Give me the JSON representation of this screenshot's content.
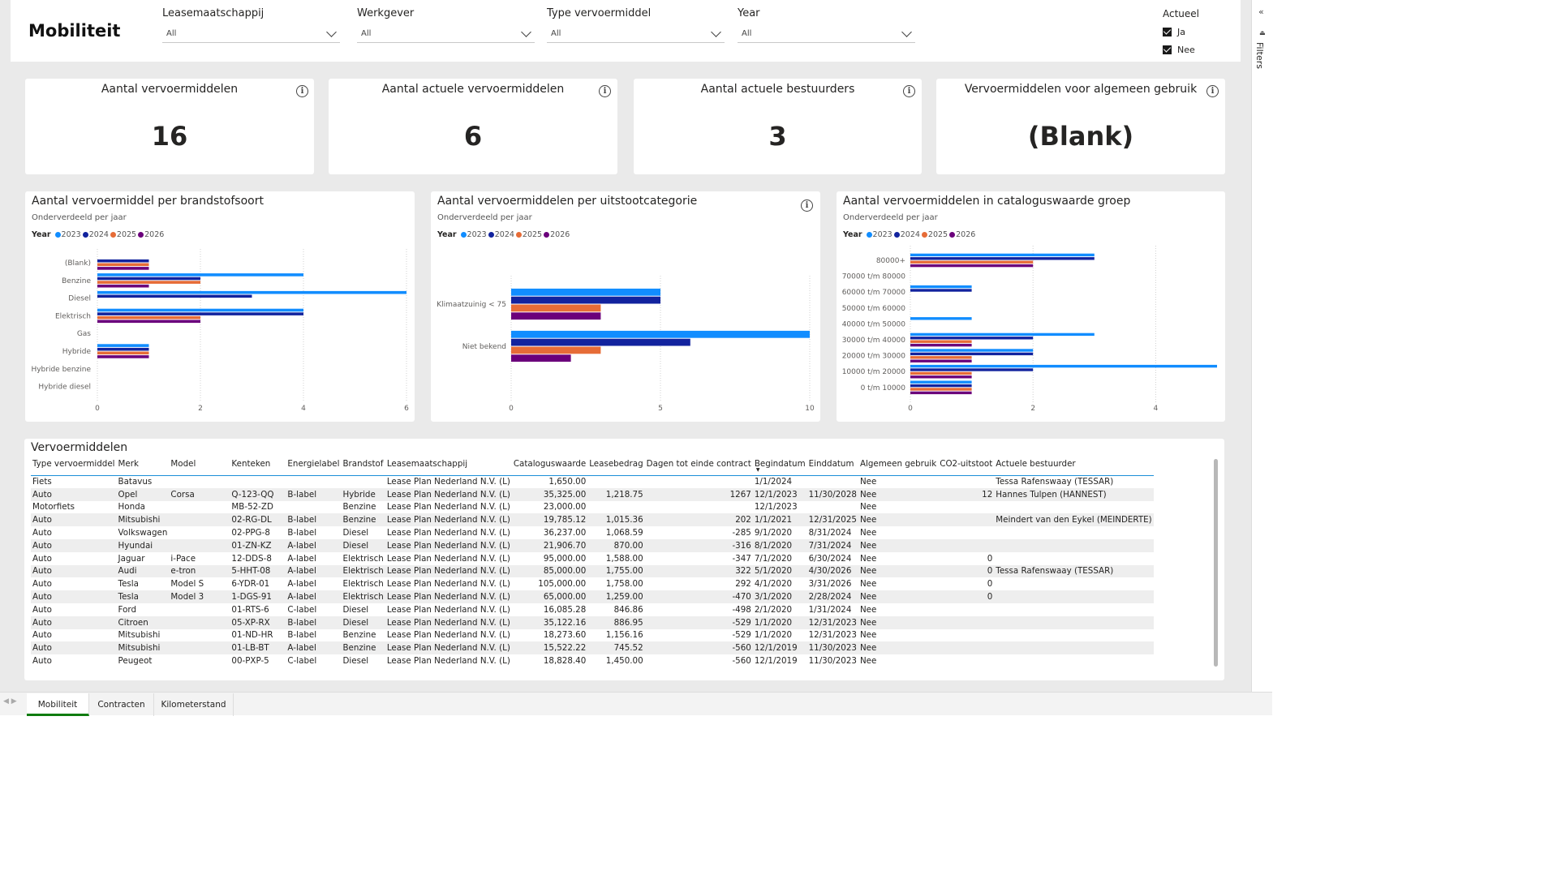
{
  "report": {
    "title": "Mobiliteit"
  },
  "slicers": [
    {
      "label": "Leasemaatschappij",
      "value": "All"
    },
    {
      "label": "Werkgever",
      "value": "All"
    },
    {
      "label": "Type vervoermiddel",
      "value": "All"
    },
    {
      "label": "Year",
      "value": "All"
    }
  ],
  "actueel": {
    "label": "Actueel",
    "options": [
      {
        "label": "Ja",
        "checked": true
      },
      {
        "label": "Nee",
        "checked": true
      }
    ]
  },
  "kpis": [
    {
      "title": "Aantal vervoermiddelen",
      "value": "16"
    },
    {
      "title": "Aantal actuele vervoermiddelen",
      "value": "6"
    },
    {
      "title": "Aantal actuele bestuurders",
      "value": "3"
    },
    {
      "title": "Vervoermiddelen voor algemeen gebruik",
      "value": "(Blank)"
    }
  ],
  "legend": {
    "title": "Year",
    "items": [
      {
        "label": "2023",
        "color": "#118DFF"
      },
      {
        "label": "2024",
        "color": "#12239E"
      },
      {
        "label": "2025",
        "color": "#E66C37"
      },
      {
        "label": "2026",
        "color": "#6B007B"
      }
    ]
  },
  "chart_data": [
    {
      "type": "bar",
      "orientation": "horizontal",
      "title": "Aantal vervoermiddel per brandstofsoort",
      "subtitle": "Onderverdeeld per jaar",
      "categories": [
        "(Blank)",
        "Benzine",
        "Diesel",
        "Elektrisch",
        "Gas",
        "Hybride",
        "Hybride benzine",
        "Hybride diesel"
      ],
      "series": [
        {
          "name": "2023",
          "values": [
            0,
            4,
            6,
            4,
            0,
            1,
            0,
            0
          ]
        },
        {
          "name": "2024",
          "values": [
            1,
            2,
            3,
            4,
            0,
            1,
            0,
            0
          ]
        },
        {
          "name": "2025",
          "values": [
            1,
            2,
            0,
            2,
            0,
            1,
            0,
            0
          ]
        },
        {
          "name": "2026",
          "values": [
            1,
            1,
            0,
            2,
            0,
            1,
            0,
            0
          ]
        }
      ],
      "xlim": [
        0,
        6
      ],
      "xticks": [
        "0",
        "2",
        "4",
        "6"
      ],
      "grid": true,
      "legend": "top-left"
    },
    {
      "type": "bar",
      "orientation": "horizontal",
      "title": "Aantal vervoermiddelen per uitstootcategorie",
      "subtitle": "Onderverdeeld per jaar",
      "categories": [
        "Klimaatzuinig < 75",
        "Niet bekend"
      ],
      "series": [
        {
          "name": "2023",
          "values": [
            5,
            10
          ]
        },
        {
          "name": "2024",
          "values": [
            5,
            6
          ]
        },
        {
          "name": "2025",
          "values": [
            3,
            3
          ]
        },
        {
          "name": "2026",
          "values": [
            3,
            2
          ]
        }
      ],
      "xlim": [
        0,
        10
      ],
      "xticks": [
        "0",
        "5",
        "10"
      ],
      "grid": true,
      "legend": "top-left"
    },
    {
      "type": "bar",
      "orientation": "horizontal",
      "title": "Aantal vervoermiddelen in cataloguswaarde groep",
      "subtitle": "Onderverdeeld per jaar",
      "categories": [
        "80000+",
        "70000 t/m 80000",
        "60000 t/m 70000",
        "50000 t/m 60000",
        "40000 t/m 50000",
        "30000 t/m 40000",
        "20000 t/m 30000",
        "10000 t/m 20000",
        "0 t/m 10000"
      ],
      "series": [
        {
          "name": "2023",
          "values": [
            3,
            0,
            1,
            0,
            1,
            3,
            2,
            5,
            1
          ]
        },
        {
          "name": "2024",
          "values": [
            3,
            0,
            1,
            0,
            0,
            2,
            2,
            2,
            1
          ]
        },
        {
          "name": "2025",
          "values": [
            2,
            0,
            0,
            0,
            0,
            1,
            1,
            1,
            1
          ]
        },
        {
          "name": "2026",
          "values": [
            2,
            0,
            0,
            0,
            0,
            1,
            1,
            1,
            1
          ]
        }
      ],
      "xlim": [
        0,
        5
      ],
      "xticks": [
        "0",
        "2",
        "4"
      ],
      "grid": true,
      "legend": "top-left"
    }
  ],
  "table": {
    "title": "Vervoermiddelen",
    "columns": [
      "Type vervoermiddel",
      "Merk",
      "Model",
      "Kenteken",
      "Energielabel",
      "Brandstof",
      "Leasemaatschappij",
      "Cataloguswaarde",
      "Leasebedrag",
      "Dagen tot einde contract",
      "Begindatum",
      "Einddatum",
      "Algemeen gebruik",
      "CO2-uitstoot",
      "Actuele bestuurder"
    ],
    "rows": [
      [
        "Fiets",
        "Batavus",
        "",
        "",
        "",
        "",
        "Lease Plan Nederland N.V. (L)",
        "1,650.00",
        "",
        "",
        "1/1/2024",
        "",
        "Nee",
        "",
        "Tessa Rafenswaay (TESSAR)"
      ],
      [
        "Auto",
        "Opel",
        "Corsa",
        "Q-123-QQ",
        "B-label",
        "Hybride",
        "Lease Plan Nederland N.V. (L)",
        "35,325.00",
        "1,218.75",
        "1267",
        "12/1/2023",
        "11/30/2028",
        "Nee",
        "12",
        "Hannes Tulpen (HANNEST)"
      ],
      [
        "Motorfiets",
        "Honda",
        "",
        "MB-52-ZD",
        "",
        "Benzine",
        "Lease Plan Nederland N.V. (L)",
        "23,000.00",
        "",
        "",
        "12/1/2023",
        "",
        "Nee",
        "",
        ""
      ],
      [
        "Auto",
        "Mitsubishi",
        "",
        "02-RG-DL",
        "B-label",
        "Benzine",
        "Lease Plan Nederland N.V. (L)",
        "19,785.12",
        "1,015.36",
        "202",
        "1/1/2021",
        "12/31/2025",
        "Nee",
        "",
        "Meindert van den Eykel (MEINDERTE)"
      ],
      [
        "Auto",
        "Volkswagen",
        "",
        "02-PPG-8",
        "B-label",
        "Diesel",
        "Lease Plan Nederland N.V. (L)",
        "36,237.00",
        "1,068.59",
        "-285",
        "9/1/2020",
        "8/31/2024",
        "Nee",
        "",
        ""
      ],
      [
        "Auto",
        "Hyundai",
        "",
        "01-ZN-KZ",
        "A-label",
        "Diesel",
        "Lease Plan Nederland N.V. (L)",
        "21,906.70",
        "870.00",
        "-316",
        "8/1/2020",
        "7/31/2024",
        "Nee",
        "",
        ""
      ],
      [
        "Auto",
        "Jaguar",
        "i-Pace",
        "12-DDS-8",
        "A-label",
        "Elektrisch",
        "Lease Plan Nederland N.V. (L)",
        "95,000.00",
        "1,588.00",
        "-347",
        "7/1/2020",
        "6/30/2024",
        "Nee",
        "0",
        ""
      ],
      [
        "Auto",
        "Audi",
        "e-tron",
        "5-HHT-08",
        "A-label",
        "Elektrisch",
        "Lease Plan Nederland N.V. (L)",
        "85,000.00",
        "1,755.00",
        "322",
        "5/1/2020",
        "4/30/2026",
        "Nee",
        "0",
        "Tessa Rafenswaay (TESSAR)"
      ],
      [
        "Auto",
        "Tesla",
        "Model S",
        "6-YDR-01",
        "A-label",
        "Elektrisch",
        "Lease Plan Nederland N.V. (L)",
        "105,000.00",
        "1,758.00",
        "292",
        "4/1/2020",
        "3/31/2026",
        "Nee",
        "0",
        ""
      ],
      [
        "Auto",
        "Tesla",
        "Model 3",
        "1-DGS-91",
        "A-label",
        "Elektrisch",
        "Lease Plan Nederland N.V. (L)",
        "65,000.00",
        "1,259.00",
        "-470",
        "3/1/2020",
        "2/28/2024",
        "Nee",
        "0",
        ""
      ],
      [
        "Auto",
        "Ford",
        "",
        "01-RTS-6",
        "C-label",
        "Diesel",
        "Lease Plan Nederland N.V. (L)",
        "16,085.28",
        "846.86",
        "-498",
        "2/1/2020",
        "1/31/2024",
        "Nee",
        "",
        ""
      ],
      [
        "Auto",
        "Citroen",
        "",
        "05-XP-RX",
        "B-label",
        "Diesel",
        "Lease Plan Nederland N.V. (L)",
        "35,122.16",
        "886.95",
        "-529",
        "1/1/2020",
        "12/31/2023",
        "Nee",
        "",
        ""
      ],
      [
        "Auto",
        "Mitsubishi",
        "",
        "01-ND-HR",
        "B-label",
        "Benzine",
        "Lease Plan Nederland N.V. (L)",
        "18,273.60",
        "1,156.16",
        "-529",
        "1/1/2020",
        "12/31/2023",
        "Nee",
        "",
        ""
      ],
      [
        "Auto",
        "Mitsubishi",
        "",
        "01-LB-BT",
        "A-label",
        "Benzine",
        "Lease Plan Nederland N.V. (L)",
        "15,522.22",
        "745.52",
        "-560",
        "12/1/2019",
        "11/30/2023",
        "Nee",
        "",
        ""
      ],
      [
        "Auto",
        "Peugeot",
        "",
        "00-PXP-5",
        "C-label",
        "Diesel",
        "Lease Plan Nederland N.V. (L)",
        "18,828.40",
        "1,450.00",
        "-560",
        "12/1/2019",
        "11/30/2023",
        "Nee",
        "",
        ""
      ]
    ]
  },
  "tabs": [
    {
      "label": "Mobiliteit",
      "active": true
    },
    {
      "label": "Contracten",
      "active": false
    },
    {
      "label": "Kilometerstand",
      "active": false
    }
  ],
  "filter_pane": {
    "label": "Filters",
    "collapse_icon": "chevron-double-left-icon"
  }
}
